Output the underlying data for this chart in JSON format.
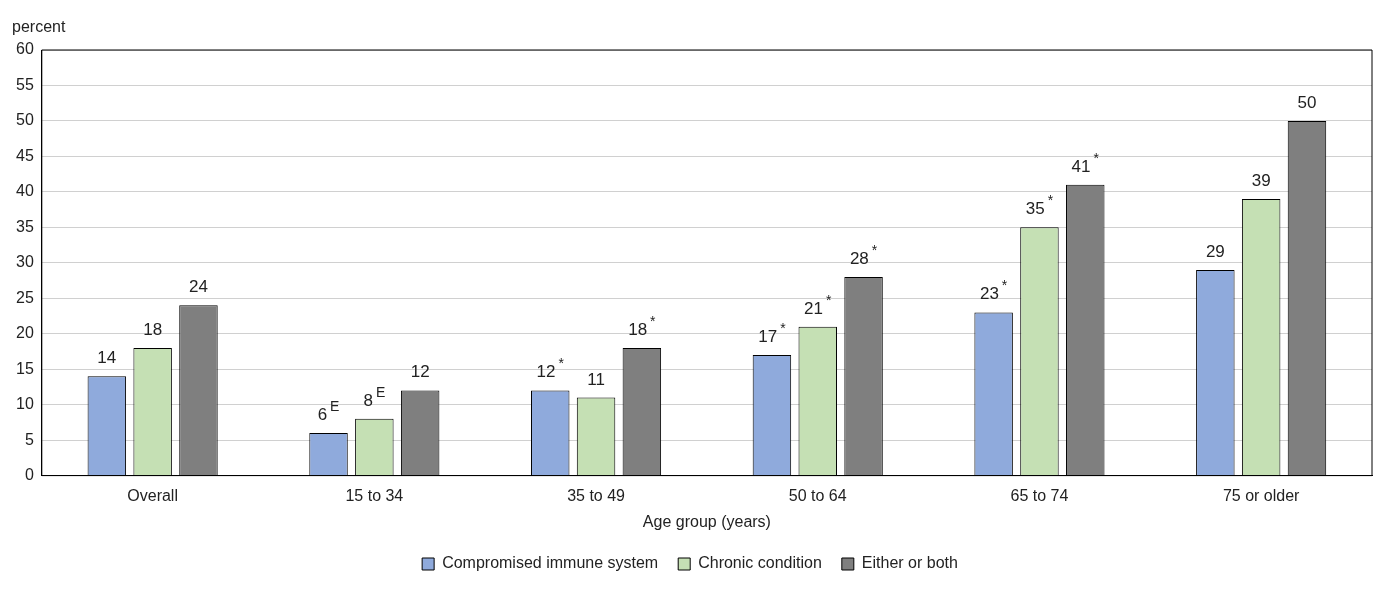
{
  "chart_data": {
    "type": "bar",
    "ylabel": "percent",
    "xlabel": "Age group (years)",
    "categories": [
      "Overall",
      "15 to 34",
      "35 to 49",
      "50 to 64",
      "65 to 74",
      "75 or older"
    ],
    "series": [
      {
        "name": "Compromised immune system",
        "color": "#8faadc",
        "values": [
          14,
          6,
          12,
          17,
          23,
          29
        ],
        "value_labels": [
          "14",
          "6$^{E}$",
          "12$^{*}$",
          "17$^{*}$",
          "23$^{*}$",
          "29"
        ]
      },
      {
        "name": "Chronic condition",
        "color": "#c5e0b4",
        "values": [
          18,
          8,
          11,
          21,
          35,
          39
        ],
        "value_labels": [
          "18",
          "8$^{E}$",
          "11",
          "21$^{*}$",
          "35$^{*}$",
          "39"
        ]
      },
      {
        "name": "Either or both",
        "color": "#7f7f7f",
        "values": [
          24,
          12,
          18,
          28,
          41,
          50
        ],
        "value_labels": [
          "24",
          "12",
          "18$^{*}$",
          "28$^{*}$",
          "41$^{*}$",
          "50"
        ]
      }
    ],
    "ylim": [
      0,
      60
    ],
    "yticks": [
      0,
      5,
      10,
      15,
      20,
      25,
      30,
      35,
      40,
      45,
      50,
      55,
      60
    ],
    "grid": "y",
    "legend": "bottom"
  }
}
